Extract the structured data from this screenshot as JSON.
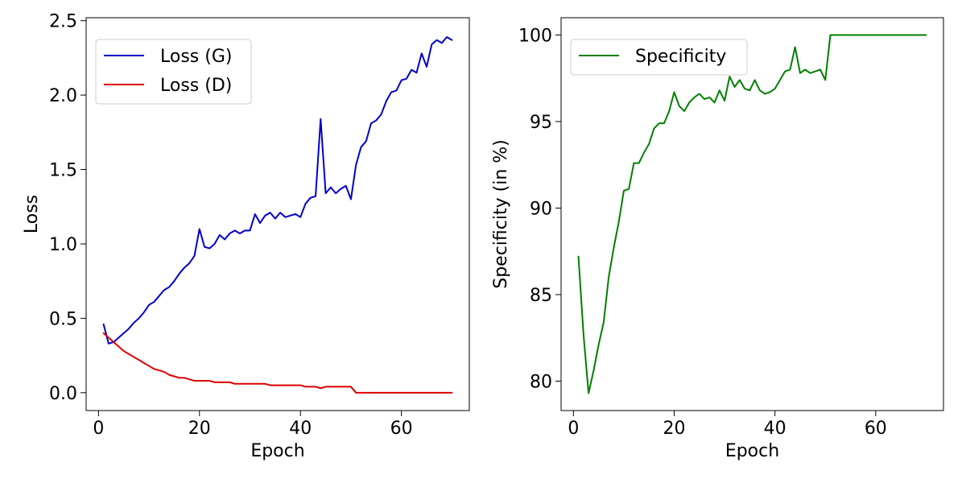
{
  "chart_data": [
    {
      "type": "line",
      "xlabel": "Epoch",
      "ylabel": "Loss",
      "xlim": [
        -2.45,
        73.45
      ],
      "ylim": [
        -0.12,
        2.52
      ],
      "xticks": [
        0,
        20,
        40,
        60
      ],
      "yticks": [
        0.0,
        0.5,
        1.0,
        1.5,
        2.0,
        2.5
      ],
      "ytick_labels": [
        "0.0",
        "0.5",
        "1.0",
        "1.5",
        "2.0",
        "2.5"
      ],
      "grid": false,
      "legend_position": "top-left",
      "series": [
        {
          "name": "Loss (G)",
          "color": "#0000cc",
          "x": [
            1,
            2,
            3,
            4,
            5,
            6,
            7,
            8,
            9,
            10,
            11,
            12,
            13,
            14,
            15,
            16,
            17,
            18,
            19,
            20,
            21,
            22,
            23,
            24,
            25,
            26,
            27,
            28,
            29,
            30,
            31,
            32,
            33,
            34,
            35,
            36,
            37,
            38,
            39,
            40,
            41,
            42,
            43,
            44,
            45,
            46,
            47,
            48,
            49,
            50,
            51,
            52,
            53,
            54,
            55,
            56,
            57,
            58,
            59,
            60,
            61,
            62,
            63,
            64,
            65,
            66,
            67,
            68,
            69,
            70
          ],
          "y": [
            0.46,
            0.33,
            0.34,
            0.37,
            0.4,
            0.43,
            0.47,
            0.5,
            0.54,
            0.59,
            0.61,
            0.65,
            0.69,
            0.71,
            0.75,
            0.8,
            0.84,
            0.87,
            0.92,
            1.1,
            0.98,
            0.97,
            1.0,
            1.06,
            1.03,
            1.07,
            1.09,
            1.07,
            1.09,
            1.09,
            1.2,
            1.14,
            1.19,
            1.21,
            1.17,
            1.21,
            1.18,
            1.19,
            1.2,
            1.18,
            1.27,
            1.31,
            1.32,
            1.84,
            1.34,
            1.38,
            1.34,
            1.37,
            1.39,
            1.3,
            1.53,
            1.65,
            1.69,
            1.81,
            1.83,
            1.87,
            1.96,
            2.02,
            2.03,
            2.1,
            2.11,
            2.17,
            2.15,
            2.28,
            2.19,
            2.34,
            2.37,
            2.35,
            2.39,
            2.37
          ]
        },
        {
          "name": "Loss (D)",
          "color": "#dd0000",
          "x": [
            1,
            2,
            3,
            4,
            5,
            6,
            7,
            8,
            9,
            10,
            11,
            12,
            13,
            14,
            15,
            16,
            17,
            18,
            19,
            20,
            21,
            22,
            23,
            24,
            25,
            26,
            27,
            28,
            29,
            30,
            31,
            32,
            33,
            34,
            35,
            36,
            37,
            38,
            39,
            40,
            41,
            42,
            43,
            44,
            45,
            46,
            47,
            48,
            49,
            50,
            51,
            52,
            53,
            54,
            55,
            56,
            57,
            58,
            59,
            60,
            61,
            62,
            63,
            64,
            65,
            66,
            67,
            68,
            69,
            70
          ],
          "y": [
            0.4,
            0.37,
            0.34,
            0.31,
            0.28,
            0.26,
            0.24,
            0.22,
            0.2,
            0.18,
            0.16,
            0.15,
            0.14,
            0.12,
            0.11,
            0.1,
            0.1,
            0.09,
            0.08,
            0.08,
            0.08,
            0.08,
            0.07,
            0.07,
            0.07,
            0.07,
            0.06,
            0.06,
            0.06,
            0.06,
            0.06,
            0.06,
            0.06,
            0.05,
            0.05,
            0.05,
            0.05,
            0.05,
            0.05,
            0.05,
            0.04,
            0.04,
            0.04,
            0.03,
            0.04,
            0.04,
            0.04,
            0.04,
            0.04,
            0.04,
            0.0,
            0.0,
            0.0,
            0.0,
            0.0,
            0.0,
            0.0,
            0.0,
            0.0,
            0.0,
            0.0,
            0.0,
            0.0,
            0.0,
            0.0,
            0.0,
            0.0,
            0.0,
            0.0,
            0.0
          ]
        }
      ]
    },
    {
      "type": "line",
      "xlabel": "Epoch",
      "ylabel": "Specificity (in %)",
      "xlim": [
        -2.45,
        73.45
      ],
      "ylim": [
        78.3,
        101.0
      ],
      "xticks": [
        0,
        20,
        40,
        60
      ],
      "yticks": [
        80,
        85,
        90,
        95,
        100
      ],
      "ytick_labels": [
        "80",
        "85",
        "90",
        "95",
        "100"
      ],
      "grid": false,
      "legend_position": "top-left",
      "series": [
        {
          "name": "Specificity",
          "color": "#007f00",
          "x": [
            1,
            2,
            3,
            4,
            5,
            6,
            7,
            8,
            9,
            10,
            11,
            12,
            13,
            14,
            15,
            16,
            17,
            18,
            19,
            20,
            21,
            22,
            23,
            24,
            25,
            26,
            27,
            28,
            29,
            30,
            31,
            32,
            33,
            34,
            35,
            36,
            37,
            38,
            39,
            40,
            41,
            42,
            43,
            44,
            45,
            46,
            47,
            48,
            49,
            50,
            51,
            52,
            53,
            54,
            55,
            56,
            57,
            58,
            59,
            60,
            61,
            62,
            63,
            64,
            65,
            66,
            67,
            68,
            69,
            70
          ],
          "y": [
            87.2,
            82.7,
            79.3,
            80.6,
            82.1,
            83.4,
            86.0,
            87.7,
            89.2,
            91.0,
            91.1,
            92.6,
            92.6,
            93.2,
            93.7,
            94.6,
            94.9,
            94.9,
            95.6,
            96.7,
            95.9,
            95.6,
            96.1,
            96.4,
            96.6,
            96.3,
            96.4,
            96.1,
            96.8,
            96.2,
            97.6,
            97.0,
            97.4,
            96.9,
            96.8,
            97.4,
            96.8,
            96.6,
            96.7,
            96.9,
            97.4,
            97.9,
            98.0,
            99.3,
            97.8,
            98.0,
            97.8,
            97.9,
            98.0,
            97.4,
            100,
            100,
            100,
            100,
            100,
            100,
            100,
            100,
            100,
            100,
            100,
            100,
            100,
            100,
            100,
            100,
            100,
            100,
            100,
            100
          ]
        }
      ]
    }
  ]
}
